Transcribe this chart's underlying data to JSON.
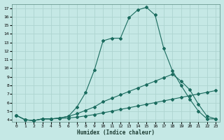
{
  "xlabel": "Humidex (Indice chaleur)",
  "background_color": "#c5e8e5",
  "grid_color": "#aed4d0",
  "line_color": "#1a6b5e",
  "xlim": [
    -0.5,
    23.5
  ],
  "ylim": [
    3.8,
    17.5
  ],
  "xticks": [
    0,
    1,
    2,
    3,
    4,
    5,
    6,
    7,
    8,
    9,
    10,
    11,
    12,
    13,
    14,
    15,
    16,
    17,
    18,
    19,
    20,
    21,
    22,
    23
  ],
  "yticks": [
    4,
    5,
    6,
    7,
    8,
    9,
    10,
    11,
    12,
    13,
    14,
    15,
    16,
    17
  ],
  "series_peak_x": [
    0,
    1,
    2,
    3,
    4,
    5,
    6,
    7,
    8,
    9,
    10,
    11,
    12,
    13,
    14,
    15,
    16,
    17,
    18,
    19,
    20,
    21,
    22,
    23
  ],
  "series_peak_y": [
    4.5,
    4.0,
    3.9,
    4.1,
    4.1,
    4.2,
    4.4,
    5.5,
    7.2,
    9.8,
    13.2,
    13.5,
    13.5,
    15.9,
    16.8,
    17.1,
    16.2,
    12.3,
    9.7,
    8.0,
    6.4,
    5.0,
    4.1,
    4.1
  ],
  "series_mid_x": [
    0,
    1,
    2,
    3,
    4,
    5,
    6,
    7,
    8,
    9,
    10,
    11,
    12,
    13,
    14,
    15,
    16,
    17,
    18,
    19,
    20,
    21,
    22,
    23
  ],
  "series_mid_y": [
    4.5,
    4.0,
    3.9,
    4.1,
    4.1,
    4.2,
    4.4,
    4.7,
    5.1,
    5.5,
    6.1,
    6.5,
    6.9,
    7.3,
    7.7,
    8.1,
    8.5,
    8.9,
    9.3,
    8.5,
    7.5,
    5.8,
    4.4,
    4.1
  ],
  "series_low_x": [
    0,
    1,
    2,
    3,
    4,
    5,
    6,
    7,
    8,
    9,
    10,
    11,
    12,
    13,
    14,
    15,
    16,
    17,
    18,
    19,
    20,
    21,
    22,
    23
  ],
  "series_low_y": [
    4.5,
    4.0,
    3.9,
    4.1,
    4.1,
    4.15,
    4.2,
    4.3,
    4.45,
    4.6,
    4.8,
    5.0,
    5.2,
    5.4,
    5.6,
    5.8,
    6.0,
    6.2,
    6.4,
    6.6,
    6.8,
    7.0,
    7.2,
    7.4
  ]
}
